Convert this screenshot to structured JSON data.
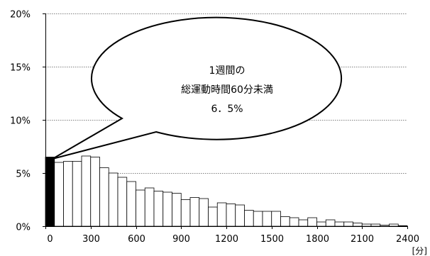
{
  "chart_data": {
    "type": "bar",
    "xlabel": "",
    "ylabel": "",
    "unit_label": "[分]",
    "x_range": [
      0,
      2400
    ],
    "x_ticks": [
      0,
      300,
      600,
      900,
      1200,
      1500,
      1800,
      2100,
      2400
    ],
    "x_tick_labels": [
      "0",
      "300",
      "600",
      "900",
      "1200",
      "1500",
      "1800",
      "2100",
      "2400"
    ],
    "ylim": [
      0,
      20
    ],
    "y_ticks": [
      0,
      5,
      10,
      15,
      20
    ],
    "y_tick_labels": [
      "0%",
      "5%",
      "10%",
      "15%",
      "20%"
    ],
    "grid": "horizontal dotted",
    "bin_width": 60,
    "bins_start": [
      0,
      60,
      120,
      180,
      240,
      300,
      360,
      420,
      480,
      540,
      600,
      660,
      720,
      780,
      840,
      900,
      960,
      1020,
      1080,
      1140,
      1200,
      1260,
      1320,
      1380,
      1440,
      1500,
      1560,
      1620,
      1680,
      1740,
      1800,
      1860,
      1920,
      1980,
      2040,
      2100,
      2160,
      2220,
      2280,
      2340
    ],
    "values": [
      6.5,
      6.0,
      6.1,
      6.1,
      6.6,
      6.5,
      5.5,
      5.0,
      4.6,
      4.2,
      3.4,
      3.6,
      3.3,
      3.2,
      3.1,
      2.5,
      2.7,
      2.6,
      1.8,
      2.2,
      2.1,
      2.0,
      1.5,
      1.4,
      1.4,
      1.4,
      0.9,
      0.8,
      0.6,
      0.8,
      0.4,
      0.6,
      0.4,
      0.4,
      0.3,
      0.2,
      0.2,
      0.1,
      0.2,
      0.05
    ],
    "highlight_index": 0,
    "colors": {
      "highlight_bar": "#000000",
      "bar_fill": "#ffffff",
      "bar_stroke": "#000000",
      "grid": "#808080",
      "axis": "#000000"
    },
    "annotation": {
      "lines": [
        "1週間の",
        "総運動時間60分未満",
        "6．5%"
      ]
    }
  }
}
